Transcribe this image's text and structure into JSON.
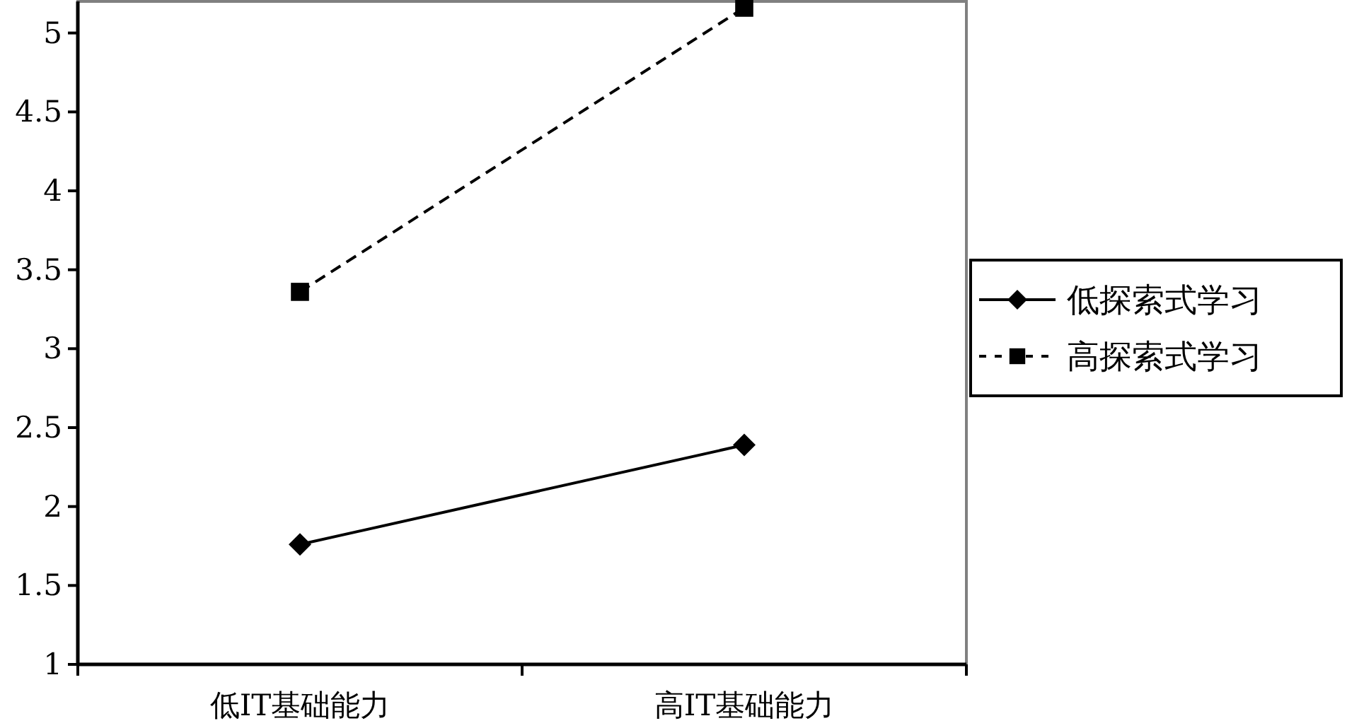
{
  "chart_data": {
    "type": "line",
    "categories": [
      "低IT基础能力",
      "高IT基础能力"
    ],
    "series": [
      {
        "name": "低探索式学习",
        "color": "#000000",
        "values": [
          1.76,
          2.39
        ],
        "marker": "diamond",
        "line_style": "solid"
      },
      {
        "name": "高探索式学习",
        "color": "#000000",
        "values": [
          3.36,
          5.16
        ],
        "marker": "square",
        "line_style": "dashed"
      }
    ],
    "ylim": [
      1,
      5.2
    ],
    "yticks": [
      1,
      1.5,
      2,
      2.5,
      3,
      3.5,
      4,
      4.5,
      5
    ],
    "grid": false,
    "legend": "right"
  }
}
